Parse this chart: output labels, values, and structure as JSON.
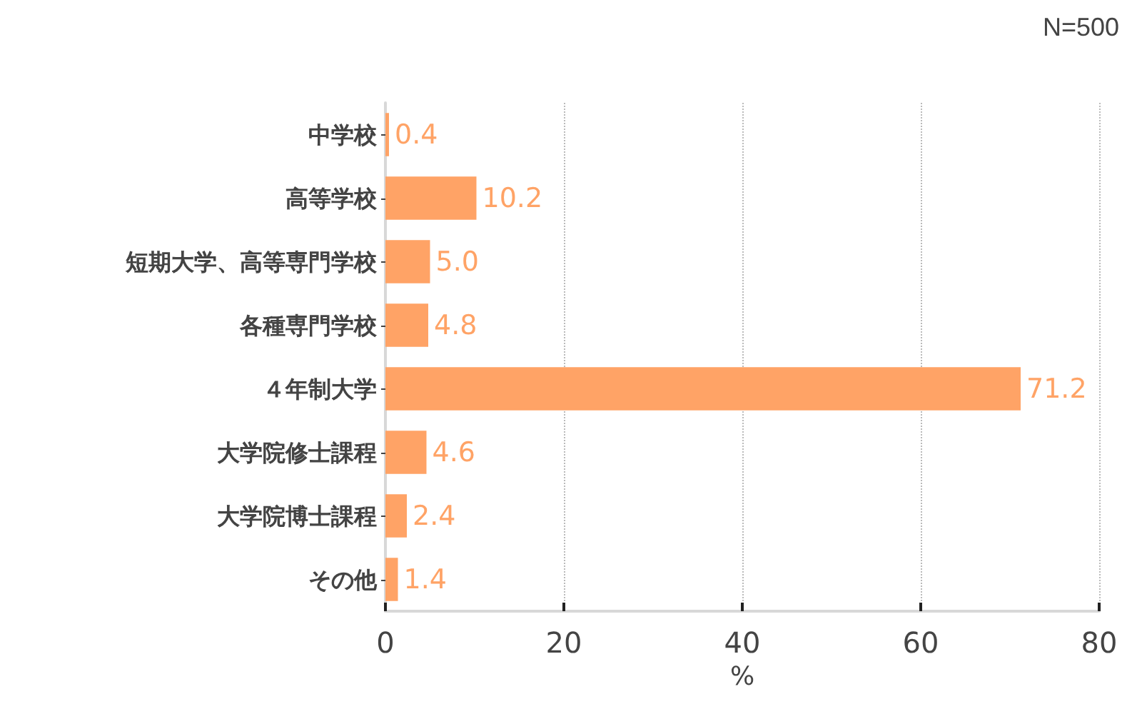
{
  "chart_data": {
    "type": "bar",
    "orientation": "horizontal",
    "categories": [
      "中学校",
      "高等学校",
      "短期大学、高等専門学校",
      "各種専門学校",
      "４年制大学",
      "大学院修士課程",
      "大学院博士課程",
      "その他"
    ],
    "values": [
      0.4,
      10.2,
      5.0,
      4.8,
      71.2,
      4.6,
      2.4,
      1.4
    ],
    "value_labels": [
      "0.4",
      "10.2",
      "5.0",
      "4.8",
      "71.2",
      "4.6",
      "2.4",
      "1.4"
    ],
    "color": "#ffa366",
    "xlabel": "%",
    "xlim": [
      0,
      80
    ],
    "xticks": [
      0,
      20,
      40,
      60,
      80
    ],
    "grid": "x",
    "annotations": [
      "N=500"
    ]
  }
}
